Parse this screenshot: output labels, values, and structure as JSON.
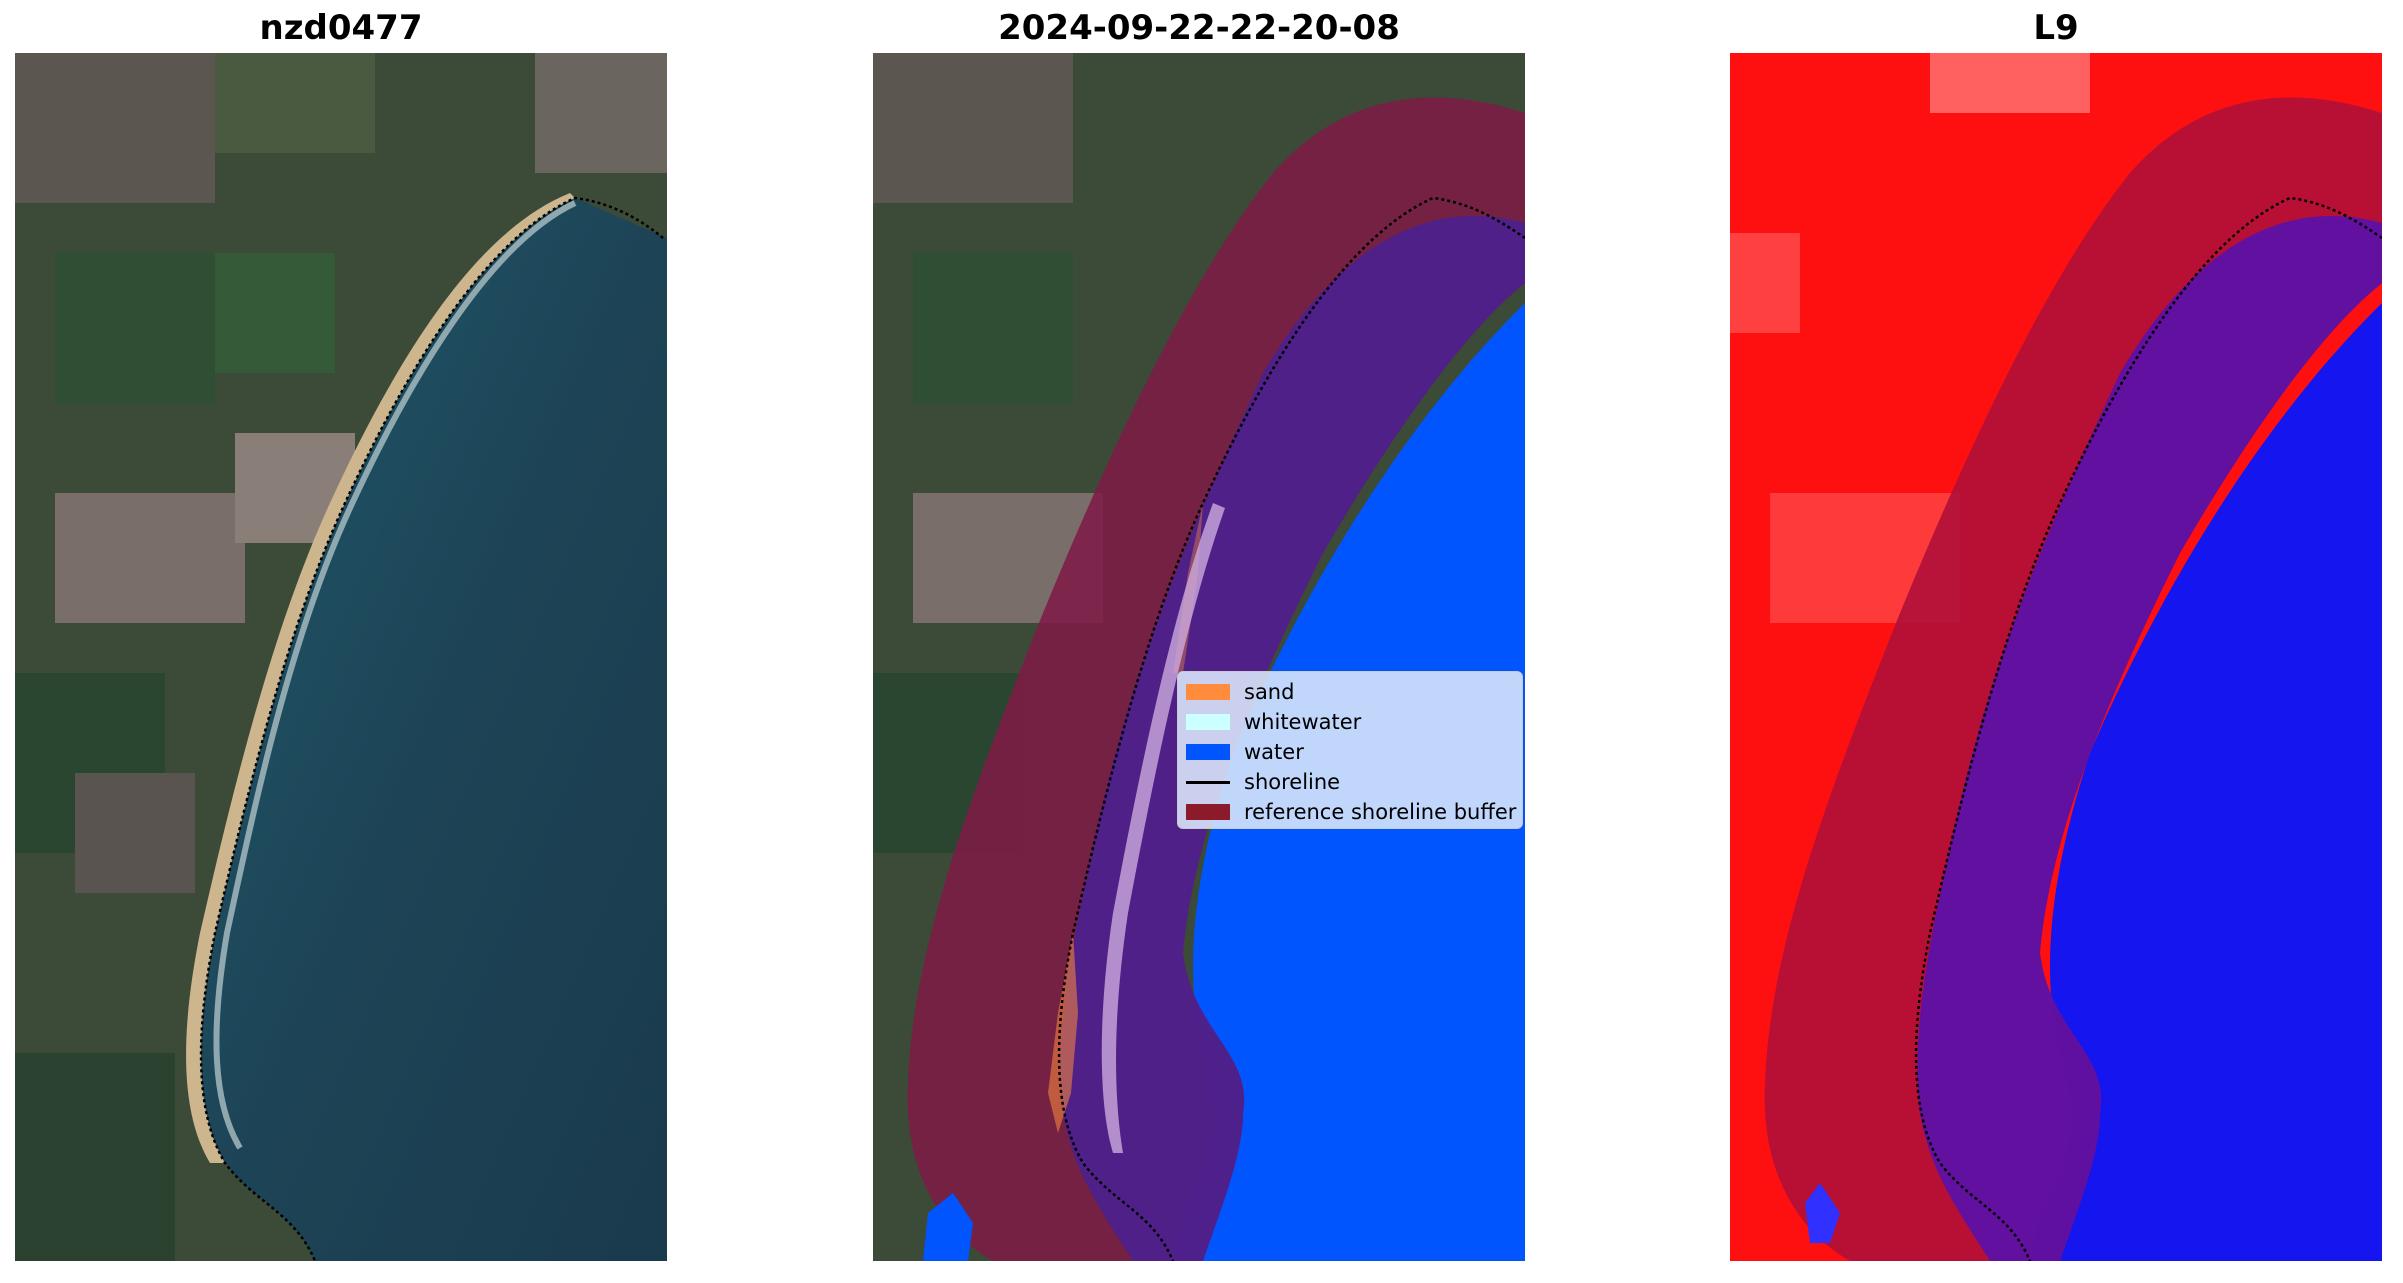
{
  "panels": [
    {
      "title": "nzd0477"
    },
    {
      "title": "2024-09-22-22-20-08"
    },
    {
      "title": "L9"
    }
  ],
  "legend": {
    "items": [
      {
        "label": "sand",
        "kind": "patch",
        "color": "#ff8c3c"
      },
      {
        "label": "whitewater",
        "kind": "patch",
        "color": "#ccffff"
      },
      {
        "label": "water",
        "kind": "patch",
        "color": "#0055ff"
      },
      {
        "label": "shoreline",
        "kind": "line",
        "color": "#000000"
      },
      {
        "label": "reference shoreline buffer",
        "kind": "patch",
        "color": "#8b1a2a"
      }
    ]
  },
  "colors": {
    "land": "#3b4a37",
    "sea": "#1f4152",
    "beach": "#cdb58d",
    "buffer": "#7d1b45",
    "water_class": "#0055ff",
    "index_land": "#ff1010",
    "index_water": "#1515f0"
  }
}
